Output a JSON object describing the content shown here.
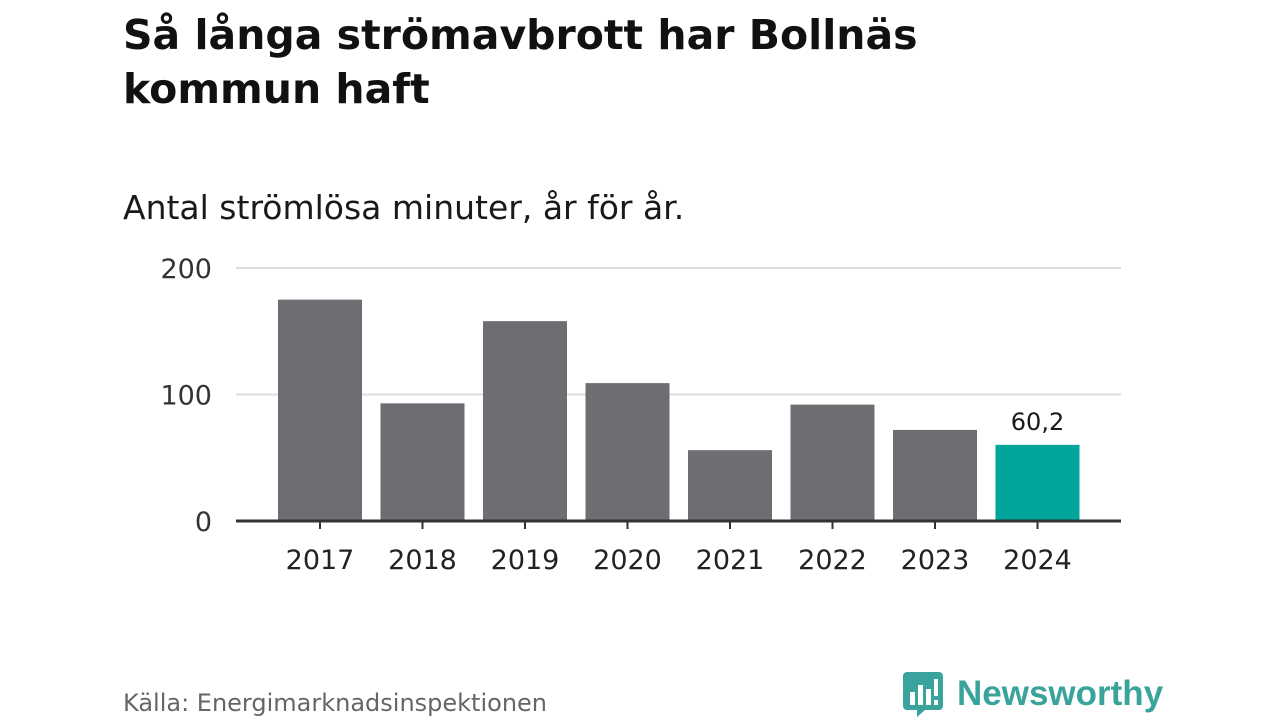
{
  "title": "Så långa strömavbrott har Bollnäs kommun haft",
  "subtitle": "Antal strömlösa minuter, år för år.",
  "source": "Källa: Energimarknadsinspektionen",
  "brand": {
    "name": "Newsworthy",
    "icon": "newsworthy-logo-icon",
    "color": "#3aa39c"
  },
  "colors": {
    "bar": "#6e6d72",
    "highlight": "#00a59b",
    "grid": "#dddddd",
    "axis": "#333333"
  },
  "chart_data": {
    "type": "bar",
    "categories": [
      "2017",
      "2018",
      "2019",
      "2020",
      "2021",
      "2022",
      "2023",
      "2024"
    ],
    "values": [
      175,
      93,
      158,
      109,
      56,
      92,
      72,
      60.2
    ],
    "highlight_index": 7,
    "data_labels": [
      {
        "index": 7,
        "text": "60,2"
      }
    ],
    "ylim": [
      0,
      200
    ],
    "yticks": [
      {
        "value": 0,
        "label": "0"
      },
      {
        "value": 100,
        "label": "100"
      },
      {
        "value": 200,
        "label": "200"
      }
    ],
    "grid": true,
    "xlabel": "",
    "ylabel": ""
  }
}
